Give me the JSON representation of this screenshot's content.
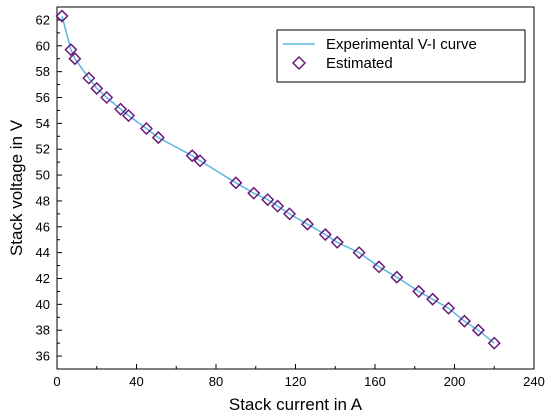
{
  "chart_data": {
    "type": "line",
    "xlabel": "Stack current in A",
    "ylabel": "Stack voltage in V",
    "xlim": [
      0,
      240
    ],
    "ylim": [
      35,
      63
    ],
    "xticks": [
      0,
      40,
      80,
      120,
      160,
      200,
      240
    ],
    "yticks": [
      36,
      38,
      40,
      42,
      44,
      46,
      48,
      50,
      52,
      54,
      56,
      58,
      60,
      62
    ],
    "grid": false,
    "legend_position": "top-right",
    "colors": {
      "line": "#5bb8e0",
      "marker": "#6a1b7a",
      "axis": "#000000"
    },
    "series": [
      {
        "name": "Experimental V-I curve",
        "kind": "line",
        "x": [
          2.5,
          7,
          9,
          16,
          20,
          25,
          32,
          36,
          45,
          51,
          68,
          72,
          90,
          99,
          106,
          111,
          117,
          126,
          135,
          141,
          152,
          162,
          171,
          182,
          189,
          197,
          205,
          212,
          220
        ],
        "y": [
          62.3,
          59.7,
          59.0,
          57.5,
          56.7,
          56.0,
          55.1,
          54.6,
          53.6,
          52.9,
          51.5,
          51.1,
          49.4,
          48.6,
          48.1,
          47.6,
          47.0,
          46.2,
          45.4,
          44.8,
          44.0,
          42.9,
          42.1,
          41.0,
          40.4,
          39.7,
          38.7,
          38.0,
          37.0
        ]
      },
      {
        "name": "Estimated",
        "kind": "scatter",
        "marker": "diamond-open",
        "x": [
          2.5,
          7,
          9,
          16,
          20,
          25,
          32,
          36,
          45,
          51,
          68,
          72,
          90,
          99,
          106,
          111,
          117,
          126,
          135,
          141,
          152,
          162,
          171,
          182,
          189,
          197,
          205,
          212,
          220
        ],
        "y": [
          62.3,
          59.7,
          59.0,
          57.5,
          56.7,
          56.0,
          55.1,
          54.6,
          53.6,
          52.9,
          51.5,
          51.1,
          49.4,
          48.6,
          48.1,
          47.6,
          47.0,
          46.2,
          45.4,
          44.8,
          44.0,
          42.9,
          42.1,
          41.0,
          40.4,
          39.7,
          38.7,
          38.0,
          37.0
        ]
      }
    ]
  }
}
